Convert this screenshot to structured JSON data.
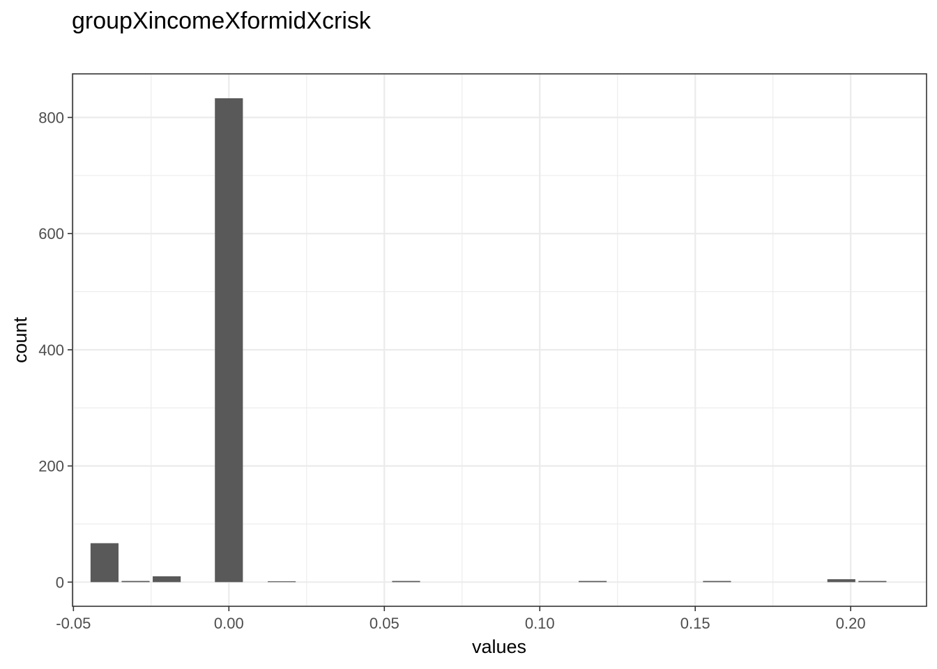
{
  "chart_data": {
    "type": "bar",
    "title": "groupXincomeXformidXcrisk",
    "xlabel": "values",
    "ylabel": "count",
    "xlim": [
      -0.0503,
      0.2244
    ],
    "ylim": [
      -41.6,
      875
    ],
    "x_ticks": [
      -0.05,
      0.0,
      0.05,
      0.1,
      0.15,
      0.2
    ],
    "x_tick_labels": [
      "-0.05",
      "0.00",
      "0.05",
      "0.10",
      "0.15",
      "0.20"
    ],
    "y_ticks": [
      0,
      200,
      400,
      600,
      800
    ],
    "y_tick_labels": [
      "0",
      "200",
      "400",
      "600",
      "800"
    ],
    "bin_width": 0.01,
    "bars": [
      {
        "x": -0.04,
        "count": 67
      },
      {
        "x": -0.03,
        "count": 2
      },
      {
        "x": -0.02,
        "count": 10
      },
      {
        "x": 0.0,
        "count": 833
      },
      {
        "x": 0.017,
        "count": 1
      },
      {
        "x": 0.057,
        "count": 2
      },
      {
        "x": 0.117,
        "count": 2
      },
      {
        "x": 0.157,
        "count": 2
      },
      {
        "x": 0.197,
        "count": 5
      },
      {
        "x": 0.207,
        "count": 2
      }
    ],
    "bar_color": "#595959",
    "grid": true,
    "background": "#ffffff"
  }
}
